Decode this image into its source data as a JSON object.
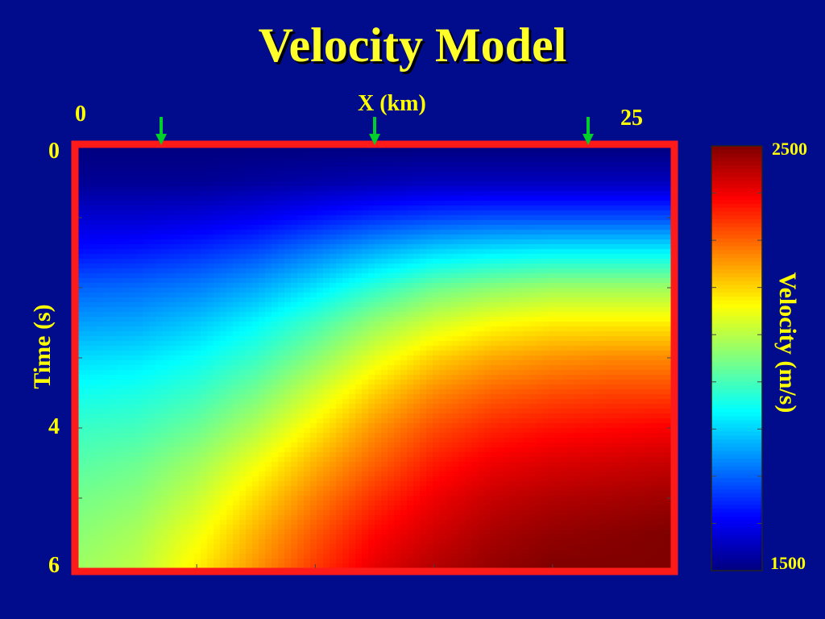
{
  "title": "Velocity Model",
  "chart_data": {
    "type": "heatmap",
    "xlabel": "X (km)",
    "ylabel": "Time (s)",
    "xlim": [
      0,
      25
    ],
    "ylim": [
      0,
      6
    ],
    "x_tick_labels": [
      "0",
      "25"
    ],
    "y_tick_labels": [
      "0",
      "4",
      "6"
    ],
    "colorbar": {
      "label": "Velocity (m/s)",
      "min": 1500,
      "max": 2500,
      "min_label": "1500",
      "max_label": "2500",
      "colormap": "jet"
    },
    "grid": {
      "x_km": [
        0,
        2.5,
        5,
        7.5,
        10,
        12.5,
        15,
        17.5,
        20,
        22.5,
        25
      ],
      "t_s": [
        0,
        0.5,
        1,
        1.5,
        2,
        2.5,
        3,
        3.5,
        4,
        4.5,
        5,
        5.5,
        6
      ],
      "velocity": [
        [
          1500,
          1500,
          1500,
          1500,
          1500,
          1500,
          1500,
          1500,
          1500,
          1500,
          1500
        ],
        [
          1520,
          1520,
          1520,
          1530,
          1540,
          1550,
          1560,
          1560,
          1560,
          1560,
          1560
        ],
        [
          1580,
          1580,
          1590,
          1610,
          1640,
          1670,
          1690,
          1700,
          1700,
          1700,
          1700
        ],
        [
          1640,
          1650,
          1670,
          1700,
          1750,
          1800,
          1840,
          1860,
          1870,
          1870,
          1870
        ],
        [
          1720,
          1730,
          1750,
          1790,
          1850,
          1920,
          1980,
          2010,
          2030,
          2030,
          2030
        ],
        [
          1780,
          1790,
          1820,
          1870,
          1940,
          2020,
          2080,
          2120,
          2140,
          2140,
          2140
        ],
        [
          1840,
          1850,
          1880,
          1930,
          2010,
          2100,
          2170,
          2210,
          2230,
          2240,
          2240
        ],
        [
          1890,
          1900,
          1930,
          1990,
          2080,
          2170,
          2240,
          2280,
          2300,
          2310,
          2310
        ],
        [
          1930,
          1940,
          1980,
          2050,
          2140,
          2230,
          2300,
          2340,
          2360,
          2370,
          2380
        ],
        [
          1960,
          1980,
          2030,
          2110,
          2200,
          2280,
          2350,
          2390,
          2410,
          2420,
          2430
        ],
        [
          1990,
          2010,
          2070,
          2160,
          2250,
          2330,
          2390,
          2430,
          2450,
          2460,
          2470
        ],
        [
          2010,
          2040,
          2110,
          2200,
          2290,
          2370,
          2420,
          2460,
          2480,
          2490,
          2500
        ],
        [
          2030,
          2060,
          2140,
          2230,
          2320,
          2400,
          2450,
          2480,
          2500,
          2500,
          2500
        ]
      ]
    },
    "receiver_markers_x_km": [
      3.5,
      12.5,
      21.5
    ],
    "colors": {
      "background": "#000c8c",
      "frame": "#ff1a1a",
      "marker": "#00d02a",
      "text": "#ffff00"
    }
  }
}
